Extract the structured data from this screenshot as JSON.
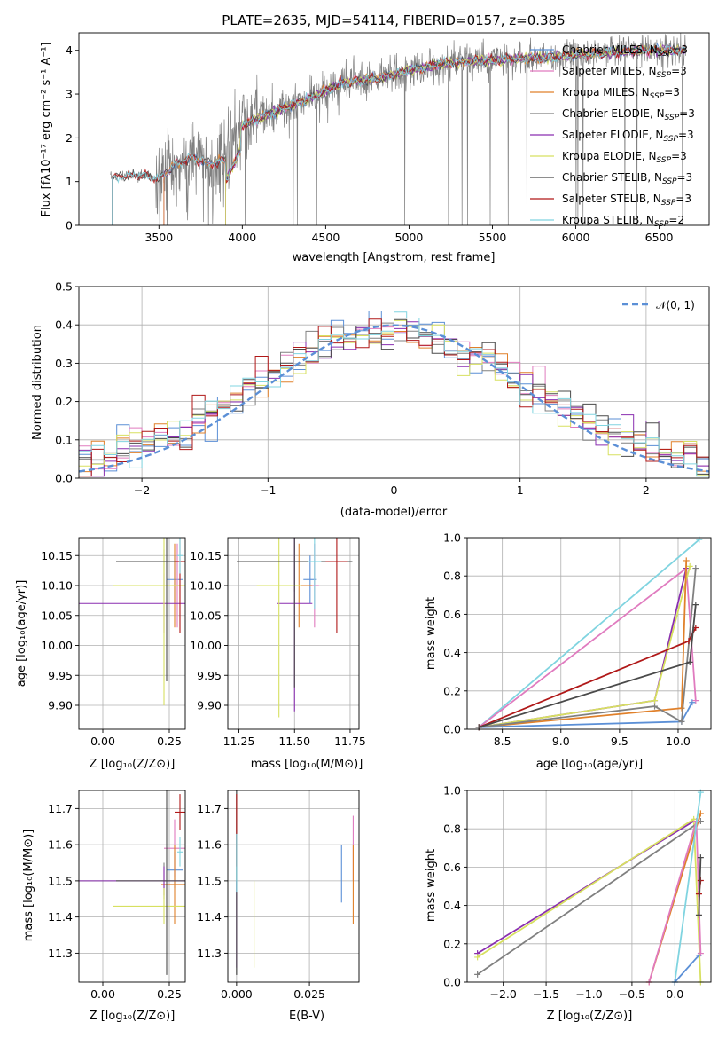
{
  "colors": {
    "chabrier_miles": "#5b8fd6",
    "salpeter_miles": "#e07bbf",
    "kroupa_miles": "#e0802a",
    "chabrier_elodie": "#808080",
    "salpeter_elodie": "#8a2fb0",
    "kroupa_elodie": "#d7e060",
    "chabrier_stelib": "#4a4a4a",
    "salpeter_stelib": "#b01818",
    "kroupa_stelib": "#80d4e0",
    "gaussian": "#5b8fd6"
  },
  "chart_data": [
    {
      "id": "spectrum",
      "type": "line",
      "title": "PLATE=2635, MJD=54114, FIBERID=0157, z=0.385",
      "xlabel": "wavelength [Angstrom, rest frame]",
      "ylabel": "Flux [fλ10⁻¹⁷ erg cm⁻² s⁻¹ A⁻¹]",
      "xlim": [
        3020,
        6800
      ],
      "ylim": [
        0,
        4.4
      ],
      "xticks": [
        "3500",
        "4000",
        "4500",
        "5000",
        "5500",
        "6000",
        "6500"
      ],
      "xtick_values": [
        3500,
        4000,
        4500,
        5000,
        5500,
        6000,
        6500
      ],
      "yticks": [
        "0",
        "1",
        "2",
        "3",
        "4"
      ],
      "ytick_values": [
        0,
        1,
        2,
        3,
        4
      ],
      "legend": "upper-right",
      "continuum": [
        [
          3200,
          1.1
        ],
        [
          3400,
          1.15
        ],
        [
          3500,
          1.05
        ],
        [
          3600,
          1.4
        ],
        [
          3700,
          1.55
        ],
        [
          3800,
          1.4
        ],
        [
          3900,
          1.5
        ],
        [
          4000,
          2.3
        ],
        [
          4200,
          2.6
        ],
        [
          4400,
          2.9
        ],
        [
          4600,
          3.25
        ],
        [
          4800,
          3.35
        ],
        [
          5000,
          3.55
        ],
        [
          5200,
          3.7
        ],
        [
          5400,
          3.75
        ],
        [
          5600,
          3.8
        ],
        [
          5800,
          3.82
        ],
        [
          6000,
          3.9
        ],
        [
          6200,
          3.95
        ],
        [
          6400,
          4.0
        ],
        [
          6600,
          4.0
        ]
      ],
      "series": [
        {
          "name": "Chabrier MILES, N",
          "sub": "SSP",
          "suffix": "=3",
          "start": 3530
        },
        {
          "name": "Salpeter MILES, N",
          "sub": "SSP",
          "suffix": "=3",
          "start": 3530
        },
        {
          "name": "Kroupa MILES, N",
          "sub": "SSP",
          "suffix": "=3",
          "start": 3530
        },
        {
          "name": "Chabrier ELODIE, N",
          "sub": "SSP",
          "suffix": "=3",
          "start": 3900
        },
        {
          "name": "Salpeter ELODIE, N",
          "sub": "SSP",
          "suffix": "=3",
          "start": 3900
        },
        {
          "name": "Kroupa ELODIE, N",
          "sub": "SSP",
          "suffix": "=3",
          "start": 3900
        },
        {
          "name": "Chabrier STELIB, N",
          "sub": "SSP",
          "suffix": "=3",
          "start": 3220
        },
        {
          "name": "Salpeter STELIB, N",
          "sub": "SSP",
          "suffix": "=3",
          "start": 3220
        },
        {
          "name": "Kroupa STELIB, N",
          "sub": "SSP",
          "suffix": "=2",
          "start": 3220
        }
      ]
    },
    {
      "id": "residuals",
      "type": "line",
      "xlabel": "(data-model)/error",
      "ylabel": "Normed distribution",
      "xlim": [
        -2.5,
        2.5
      ],
      "ylim": [
        0,
        0.5
      ],
      "xticks": [
        "−2",
        "−1",
        "0",
        "1",
        "2"
      ],
      "xtick_values": [
        -2,
        -1,
        0,
        1,
        2
      ],
      "yticks": [
        "0.0",
        "0.1",
        "0.2",
        "0.3",
        "0.4",
        "0.5"
      ],
      "ytick_values": [
        0,
        0.1,
        0.2,
        0.3,
        0.4,
        0.5
      ],
      "grid": true,
      "legend": "upper-right",
      "gaussian_label": "𝒩(0, 1)",
      "bins": 50
    },
    {
      "id": "age-vs-Z",
      "type": "scatter",
      "xlabel": "Z [log₁₀(Z/Z⊙)]",
      "ylabel": "age  [log₁₀(age/yr)]",
      "xlim": [
        -0.09,
        0.31
      ],
      "ylim": [
        9.86,
        10.18
      ],
      "xticks": [
        "0.00",
        "0.25"
      ],
      "xtick_values": [
        0,
        0.25
      ],
      "yticks": [
        "9.90",
        "9.95",
        "10.00",
        "10.05",
        "10.10",
        "10.15"
      ],
      "ytick_values": [
        9.9,
        9.95,
        10.0,
        10.05,
        10.1,
        10.15
      ],
      "grid": true,
      "points": [
        {
          "c": "chabrier_miles",
          "x": 0.27,
          "y": 10.11,
          "ex": 0.03,
          "ey": 0.04
        },
        {
          "c": "salpeter_miles",
          "x": 0.28,
          "y": 10.1,
          "ex": 0.02,
          "ey": 0.07
        },
        {
          "c": "kroupa_miles",
          "x": 0.27,
          "y": 10.1,
          "ex": 0.06,
          "ey": 0.07
        },
        {
          "c": "chabrier_elodie",
          "x": 0.23,
          "y": 10.14,
          "ex": 0.07,
          "ey": 0.02
        },
        {
          "c": "salpeter_elodie",
          "x": 0.23,
          "y": 10.07,
          "ex": 0.35,
          "ey": 0.05
        },
        {
          "c": "kroupa_elodie",
          "x": 0.23,
          "y": 10.1,
          "ex": 0.19,
          "ey": 0.2
        },
        {
          "c": "chabrier_stelib",
          "x": 0.24,
          "y": 10.14,
          "ex": 0.19,
          "ey": 0.2
        },
        {
          "c": "salpeter_stelib",
          "x": 0.29,
          "y": 10.14,
          "ex": 0.02,
          "ey": 0.12
        },
        {
          "c": "kroupa_stelib",
          "x": 0.29,
          "y": 10.15,
          "ex": 0.01,
          "ey": 0.03
        }
      ]
    },
    {
      "id": "age-vs-mass",
      "type": "scatter",
      "xlabel": "mass [log₁₀(M/M⊙)]",
      "xlim": [
        11.2,
        11.79
      ],
      "ylim": [
        9.86,
        10.18
      ],
      "xticks": [
        "11.25",
        "11.50",
        "11.75"
      ],
      "xtick_values": [
        11.25,
        11.5,
        11.75
      ],
      "yticks": [
        "9.90",
        "9.95",
        "10.00",
        "10.05",
        "10.10",
        "10.15"
      ],
      "ytick_values": [
        9.9,
        9.95,
        10.0,
        10.05,
        10.1,
        10.15
      ],
      "grid": true,
      "points": [
        {
          "c": "chabrier_miles",
          "x": 11.57,
          "y": 10.11,
          "ex": 0.03,
          "ey": 0.04
        },
        {
          "c": "salpeter_miles",
          "x": 11.59,
          "y": 10.1,
          "ex": 0.02,
          "ey": 0.07
        },
        {
          "c": "kroupa_miles",
          "x": 11.52,
          "y": 10.1,
          "ex": 0.06,
          "ey": 0.07
        },
        {
          "c": "chabrier_elodie",
          "x": 11.5,
          "y": 10.14,
          "ex": 0.12,
          "ey": 0.05
        },
        {
          "c": "salpeter_elodie",
          "x": 11.5,
          "y": 10.07,
          "ex": 0.08,
          "ey": 0.18
        },
        {
          "c": "kroupa_elodie",
          "x": 11.43,
          "y": 10.1,
          "ex": 0.1,
          "ey": 0.22
        },
        {
          "c": "chabrier_stelib",
          "x": 11.5,
          "y": 10.14,
          "ex": 0.26,
          "ey": 0.21
        },
        {
          "c": "salpeter_stelib",
          "x": 11.69,
          "y": 10.14,
          "ex": 0.05,
          "ey": 0.12
        },
        {
          "c": "kroupa_stelib",
          "x": 11.59,
          "y": 10.14,
          "ex": 0.03,
          "ey": 0.08
        }
      ]
    },
    {
      "id": "weight-vs-age",
      "type": "line",
      "xlabel": "age  [log₁₀(age/yr)]",
      "ylabel": "mass weight",
      "xlim": [
        8.2,
        10.28
      ],
      "ylim": [
        0,
        1
      ],
      "xticks": [
        "8.5",
        "9.0",
        "9.5",
        "10.0"
      ],
      "xtick_values": [
        8.5,
        9.0,
        9.5,
        10.0
      ],
      "yticks": [
        "0.0",
        "0.2",
        "0.4",
        "0.6",
        "0.8",
        "1.0"
      ],
      "ytick_values": [
        0,
        0.2,
        0.4,
        0.6,
        0.8,
        1.0
      ],
      "grid": true,
      "series": [
        {
          "c": "kroupa_stelib",
          "pts": [
            [
              8.3,
              0.01
            ],
            [
              10.18,
              0.99
            ]
          ]
        },
        {
          "c": "salpeter_miles",
          "pts": [
            [
              8.3,
              0.01
            ],
            [
              10.07,
              0.84
            ],
            [
              10.15,
              0.15
            ]
          ]
        },
        {
          "c": "salpeter_elodie",
          "pts": [
            [
              8.3,
              0.01
            ],
            [
              9.8,
              0.15
            ],
            [
              10.07,
              0.84
            ]
          ]
        },
        {
          "c": "kroupa_elodie",
          "pts": [
            [
              8.3,
              0.01
            ],
            [
              9.8,
              0.15
            ],
            [
              10.1,
              0.85
            ]
          ]
        },
        {
          "c": "kroupa_miles",
          "pts": [
            [
              8.3,
              0.01
            ],
            [
              10.03,
              0.11
            ],
            [
              10.07,
              0.88
            ]
          ]
        },
        {
          "c": "chabrier_miles",
          "pts": [
            [
              8.3,
              0.01
            ],
            [
              10.03,
              0.04
            ],
            [
              10.12,
              0.14
            ]
          ]
        },
        {
          "c": "chabrier_elodie",
          "pts": [
            [
              8.3,
              0.01
            ],
            [
              9.8,
              0.12
            ],
            [
              10.03,
              0.04
            ],
            [
              10.15,
              0.84
            ]
          ]
        },
        {
          "c": "salpeter_stelib",
          "pts": [
            [
              8.3,
              0.01
            ],
            [
              10.09,
              0.46
            ],
            [
              10.15,
              0.53
            ]
          ]
        },
        {
          "c": "chabrier_stelib",
          "pts": [
            [
              8.3,
              0.01
            ],
            [
              10.1,
              0.35
            ],
            [
              10.15,
              0.65
            ]
          ]
        }
      ]
    },
    {
      "id": "mass-vs-Z",
      "type": "scatter",
      "xlabel": "Z [log₁₀(Z/Z⊙)]",
      "ylabel": "mass [log₁₀(M/M⊙)]",
      "xlim": [
        -0.09,
        0.31
      ],
      "ylim": [
        11.22,
        11.75
      ],
      "xticks": [
        "0.00",
        "0.25"
      ],
      "xtick_values": [
        0,
        0.25
      ],
      "yticks": [
        "11.3",
        "11.4",
        "11.5",
        "11.6",
        "11.7"
      ],
      "ytick_values": [
        11.3,
        11.4,
        11.5,
        11.6,
        11.7
      ],
      "grid": true,
      "points": [
        {
          "c": "chabrier_miles",
          "x": 0.27,
          "y": 11.53,
          "ex": 0.03,
          "ey": 0.05
        },
        {
          "c": "salpeter_miles",
          "x": 0.27,
          "y": 11.59,
          "ex": 0.04,
          "ey": 0.08
        },
        {
          "c": "kroupa_miles",
          "x": 0.27,
          "y": 11.49,
          "ex": 0.05,
          "ey": 0.11
        },
        {
          "c": "chabrier_elodie",
          "x": 0.23,
          "y": 11.5,
          "ex": 0.35,
          "ey": 0.05
        },
        {
          "c": "salpeter_elodie",
          "x": 0.23,
          "y": 11.5,
          "ex": 0.35,
          "ey": 0.04
        },
        {
          "c": "kroupa_elodie",
          "x": 0.23,
          "y": 11.43,
          "ex": 0.19,
          "ey": 0.05
        },
        {
          "c": "chabrier_stelib",
          "x": 0.24,
          "y": 11.5,
          "ex": 0.19,
          "ey": 0.26
        },
        {
          "c": "salpeter_stelib",
          "x": 0.29,
          "y": 11.69,
          "ex": 0.02,
          "ey": 0.05
        },
        {
          "c": "kroupa_stelib",
          "x": 0.29,
          "y": 11.58,
          "ex": 0.01,
          "ey": 0.04
        }
      ]
    },
    {
      "id": "mass-vs-ebv",
      "type": "scatter",
      "xlabel": "E(B-V)",
      "xlim": [
        -0.003,
        0.042
      ],
      "ylim": [
        11.22,
        11.75
      ],
      "xticks": [
        "0.000",
        "0.025"
      ],
      "xtick_values": [
        0,
        0.025
      ],
      "yticks": [
        "11.3",
        "11.4",
        "11.5",
        "11.6",
        "11.7"
      ],
      "ytick_values": [
        11.3,
        11.4,
        11.5,
        11.6,
        11.7
      ],
      "grid": true,
      "points": [
        {
          "c": "chabrier_miles",
          "x": 0.036,
          "y": 11.52,
          "ex": 0,
          "ey": 0.08
        },
        {
          "c": "salpeter_miles",
          "x": 0.04,
          "y": 11.59,
          "ex": 0,
          "ey": 0.09
        },
        {
          "c": "kroupa_miles",
          "x": 0.04,
          "y": 11.49,
          "ex": 0,
          "ey": 0.11
        },
        {
          "c": "chabrier_elodie",
          "x": 0.0,
          "y": 11.52,
          "ex": 0,
          "ey": 0.28
        },
        {
          "c": "salpeter_elodie",
          "x": 0.0,
          "y": 11.38,
          "ex": 0,
          "ey": 0.12
        },
        {
          "c": "kroupa_elodie",
          "x": 0.006,
          "y": 11.38,
          "ex": 0,
          "ey": 0.12
        },
        {
          "c": "chabrier_stelib",
          "x": 0.0,
          "y": 11.5,
          "ex": 0,
          "ey": 0.26
        },
        {
          "c": "salpeter_stelib",
          "x": 0.0,
          "y": 11.64,
          "ex": 0,
          "ey": 0.1
        },
        {
          "c": "kroupa_stelib",
          "x": 0.0,
          "y": 11.55,
          "ex": 0,
          "ey": 0.08
        }
      ]
    },
    {
      "id": "weight-vs-Z",
      "type": "line",
      "xlabel": "Z [log₁₀(Z/Z⊙)]",
      "ylabel": "mass weight",
      "xlim": [
        -2.42,
        0.42
      ],
      "ylim": [
        0,
        1
      ],
      "xticks": [
        "−2.0",
        "−1.5",
        "−1.0",
        "−0.5",
        "0.0"
      ],
      "xtick_values": [
        -2.0,
        -1.5,
        -1.0,
        -0.5,
        0.0
      ],
      "yticks": [
        "0.0",
        "0.2",
        "0.4",
        "0.6",
        "0.8",
        "1.0"
      ],
      "ytick_values": [
        0,
        0.2,
        0.4,
        0.6,
        0.8,
        1.0
      ],
      "grid": true,
      "series": [
        {
          "c": "salpeter_elodie",
          "pts": [
            [
              -2.3,
              0.15
            ],
            [
              0.22,
              0.84
            ]
          ]
        },
        {
          "c": "kroupa_elodie",
          "pts": [
            [
              -2.3,
              0.13
            ],
            [
              0.22,
              0.85
            ],
            [
              0.3,
              0.0
            ]
          ]
        },
        {
          "c": "chabrier_elodie",
          "pts": [
            [
              -2.3,
              0.04
            ],
            [
              0.3,
              0.84
            ]
          ]
        },
        {
          "c": "kroupa_miles",
          "pts": [
            [
              -0.3,
              0.0
            ],
            [
              0.3,
              0.88
            ]
          ]
        },
        {
          "c": "salpeter_miles",
          "pts": [
            [
              -0.3,
              0.0
            ],
            [
              0.25,
              0.84
            ],
            [
              0.3,
              0.15
            ]
          ]
        },
        {
          "c": "kroupa_stelib",
          "pts": [
            [
              0.0,
              0.0
            ],
            [
              0.3,
              0.99
            ]
          ]
        },
        {
          "c": "chabrier_miles",
          "pts": [
            [
              0.0,
              0.0
            ],
            [
              0.28,
              0.14
            ]
          ]
        },
        {
          "c": "salpeter_stelib",
          "pts": [
            [
              0.28,
              0.46
            ],
            [
              0.3,
              0.53
            ]
          ]
        },
        {
          "c": "chabrier_stelib",
          "pts": [
            [
              0.28,
              0.35
            ],
            [
              0.3,
              0.65
            ]
          ]
        }
      ]
    }
  ]
}
